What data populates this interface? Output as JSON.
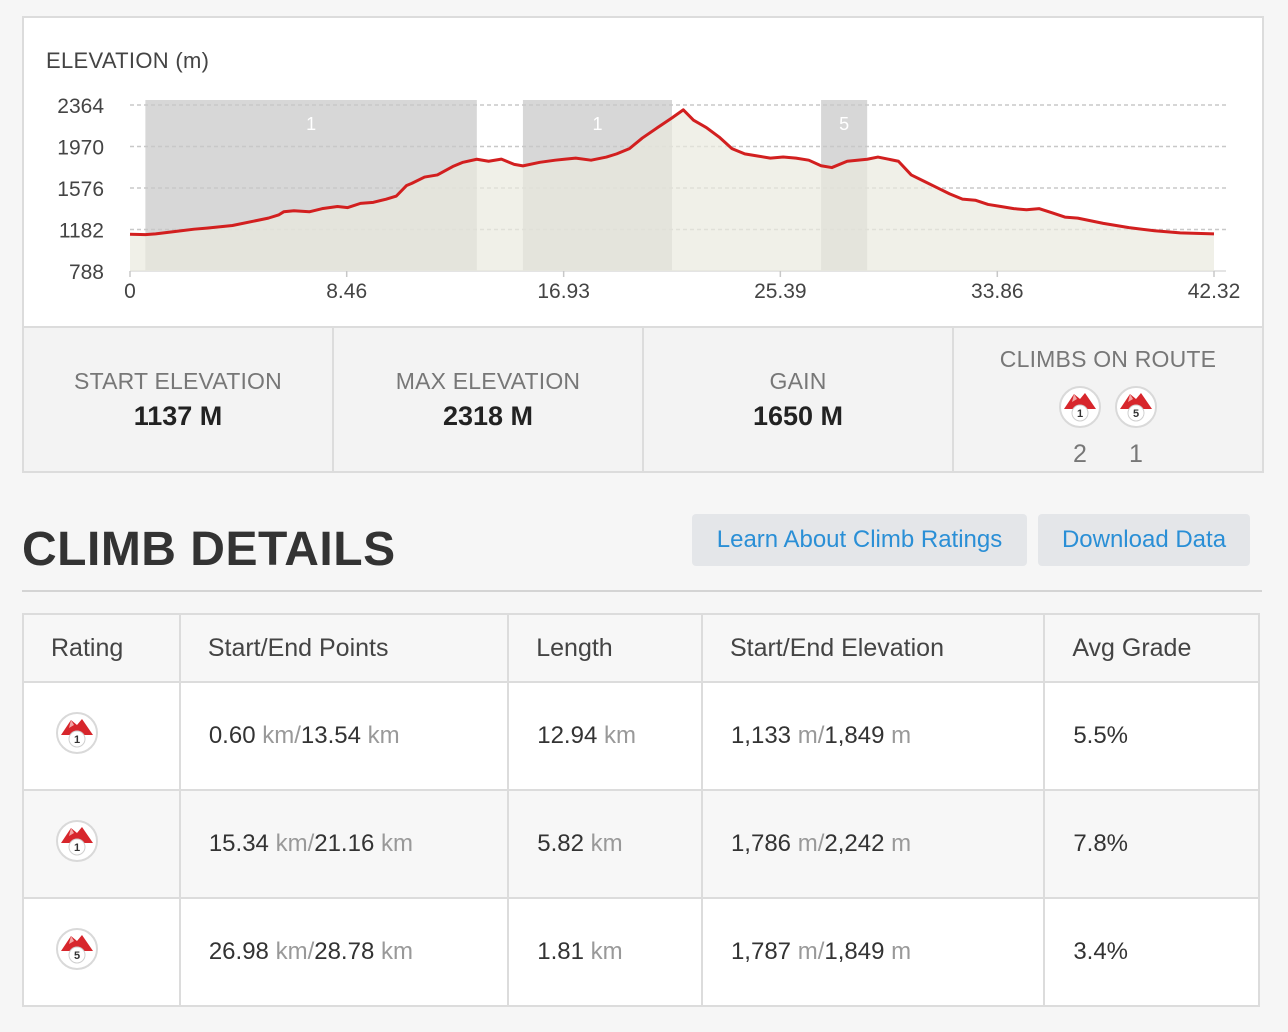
{
  "chart_data": {
    "type": "area",
    "title": "ELEVATION (m)",
    "ylabel": "ELEVATION (m)",
    "x_ticks": [
      "0",
      "8.46",
      "16.93",
      "25.39",
      "33.86",
      "42.32"
    ],
    "y_ticks": [
      "2364",
      "1970",
      "1576",
      "1182",
      "788"
    ],
    "xlim": [
      0,
      42.32
    ],
    "ylim": [
      788,
      2364
    ],
    "grid": true,
    "line_color": "#d21f1f",
    "fill_color": "#e9e9de",
    "climb_color": "#d7d7d7",
    "climb_segments": [
      {
        "label": "1",
        "start": 0.6,
        "end": 13.54
      },
      {
        "label": "1",
        "start": 15.34,
        "end": 21.16
      },
      {
        "label": "5",
        "start": 26.98,
        "end": 28.78
      }
    ],
    "x": [
      0,
      0.6,
      1,
      2,
      2.5,
      3,
      4,
      5,
      5.4,
      5.8,
      6,
      6.4,
      7,
      7.5,
      8.1,
      8.5,
      9,
      9.5,
      10,
      10.4,
      10.8,
      11,
      11.5,
      12,
      12.6,
      13,
      13.54,
      14,
      14.5,
      15,
      15.34,
      16,
      16.6,
      17,
      17.4,
      18,
      18.6,
      19,
      19.5,
      20,
      20.6,
      21.16,
      21.6,
      22,
      22.5,
      23,
      23.5,
      24,
      24.5,
      25,
      25.5,
      26,
      26.5,
      26.98,
      27.4,
      28,
      28.78,
      29.2,
      30,
      30.5,
      31,
      31.5,
      32,
      32.5,
      33,
      33.5,
      34,
      34.5,
      35,
      35.5,
      36,
      36.5,
      37,
      38,
      39,
      40,
      41,
      42.32
    ],
    "y": [
      1137,
      1133,
      1140,
      1170,
      1185,
      1195,
      1220,
      1270,
      1290,
      1320,
      1350,
      1360,
      1350,
      1380,
      1400,
      1390,
      1430,
      1440,
      1470,
      1500,
      1600,
      1620,
      1680,
      1700,
      1780,
      1820,
      1849,
      1830,
      1850,
      1800,
      1786,
      1820,
      1840,
      1850,
      1860,
      1840,
      1870,
      1900,
      1950,
      2050,
      2150,
      2242,
      2318,
      2220,
      2150,
      2060,
      1950,
      1900,
      1880,
      1860,
      1870,
      1860,
      1840,
      1787,
      1770,
      1830,
      1849,
      1870,
      1830,
      1700,
      1640,
      1580,
      1520,
      1470,
      1460,
      1420,
      1400,
      1380,
      1370,
      1380,
      1340,
      1300,
      1290,
      1240,
      1200,
      1170,
      1150,
      1140
    ]
  },
  "stats": {
    "start_elevation": {
      "label": "START ELEVATION",
      "value": "1137 M"
    },
    "max_elevation": {
      "label": "MAX ELEVATION",
      "value": "2318 M"
    },
    "gain": {
      "label": "GAIN",
      "value": "1650 M"
    },
    "climbs_on_route": {
      "label": "CLIMBS ON ROUTE",
      "badges": [
        {
          "rating": "1",
          "count": "2",
          "icon": "climb-category-1-icon"
        },
        {
          "rating": "5",
          "count": "1",
          "icon": "climb-category-5-icon"
        }
      ]
    }
  },
  "details": {
    "title": "CLIMB DETAILS",
    "learn_button": "Learn About Climb Ratings",
    "download_button": "Download Data",
    "columns": [
      "Rating",
      "Start/End Points",
      "Length",
      "Start/End Elevation",
      "Avg Grade"
    ],
    "rows": [
      {
        "rating": "1",
        "start": "0.60",
        "start_unit": "km",
        "sep": "/",
        "end": "13.54",
        "end_unit": "km",
        "length": "12.94",
        "length_unit": "km",
        "elev_start": "1,133",
        "elev_start_unit": "m",
        "elev_sep": "/",
        "elev_end": "1,849",
        "elev_end_unit": "m",
        "grade": "5.5%"
      },
      {
        "rating": "1",
        "start": "15.34",
        "start_unit": "km",
        "sep": "/",
        "end": "21.16",
        "end_unit": "km",
        "length": "5.82",
        "length_unit": "km",
        "elev_start": "1,786",
        "elev_start_unit": "m",
        "elev_sep": "/",
        "elev_end": "2,242",
        "elev_end_unit": "m",
        "grade": "7.8%"
      },
      {
        "rating": "5",
        "start": "26.98",
        "start_unit": "km",
        "sep": "/",
        "end": "28.78",
        "end_unit": "km",
        "length": "1.81",
        "length_unit": "km",
        "elev_start": "1,787",
        "elev_start_unit": "m",
        "elev_sep": "/",
        "elev_end": "1,849",
        "elev_end_unit": "m",
        "grade": "3.4%"
      }
    ]
  }
}
